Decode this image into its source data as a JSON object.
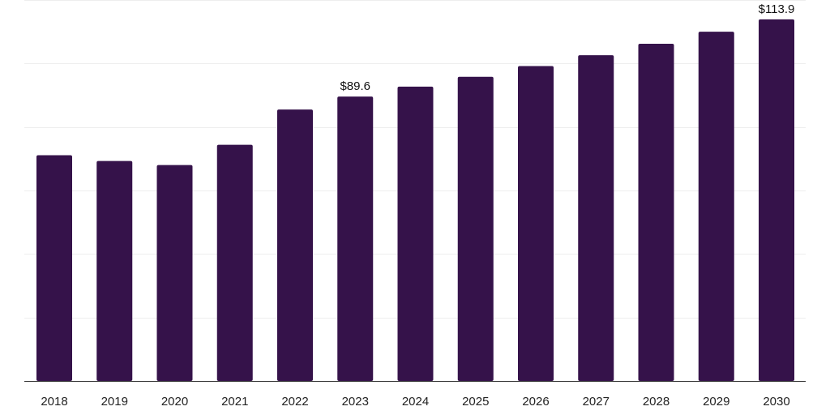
{
  "chart_data": {
    "type": "bar",
    "title": "",
    "xlabel": "",
    "ylabel": "",
    "categories": [
      "2018",
      "2019",
      "2020",
      "2021",
      "2022",
      "2023",
      "2024",
      "2025",
      "2026",
      "2027",
      "2028",
      "2029",
      "2030"
    ],
    "values": [
      71.1,
      69.3,
      68.0,
      74.4,
      85.5,
      89.6,
      92.7,
      95.8,
      99.2,
      102.6,
      106.2,
      110.0,
      113.9
    ],
    "ylim": [
      0,
      120
    ],
    "grid": true,
    "legend": "none",
    "data_labels": [
      {
        "category": "2023",
        "text": "$89.6"
      },
      {
        "category": "2030",
        "text": "$113.9"
      }
    ],
    "colors": {
      "bar": "#35124a",
      "grid": "#eeeeee",
      "axis": "#333333"
    }
  }
}
